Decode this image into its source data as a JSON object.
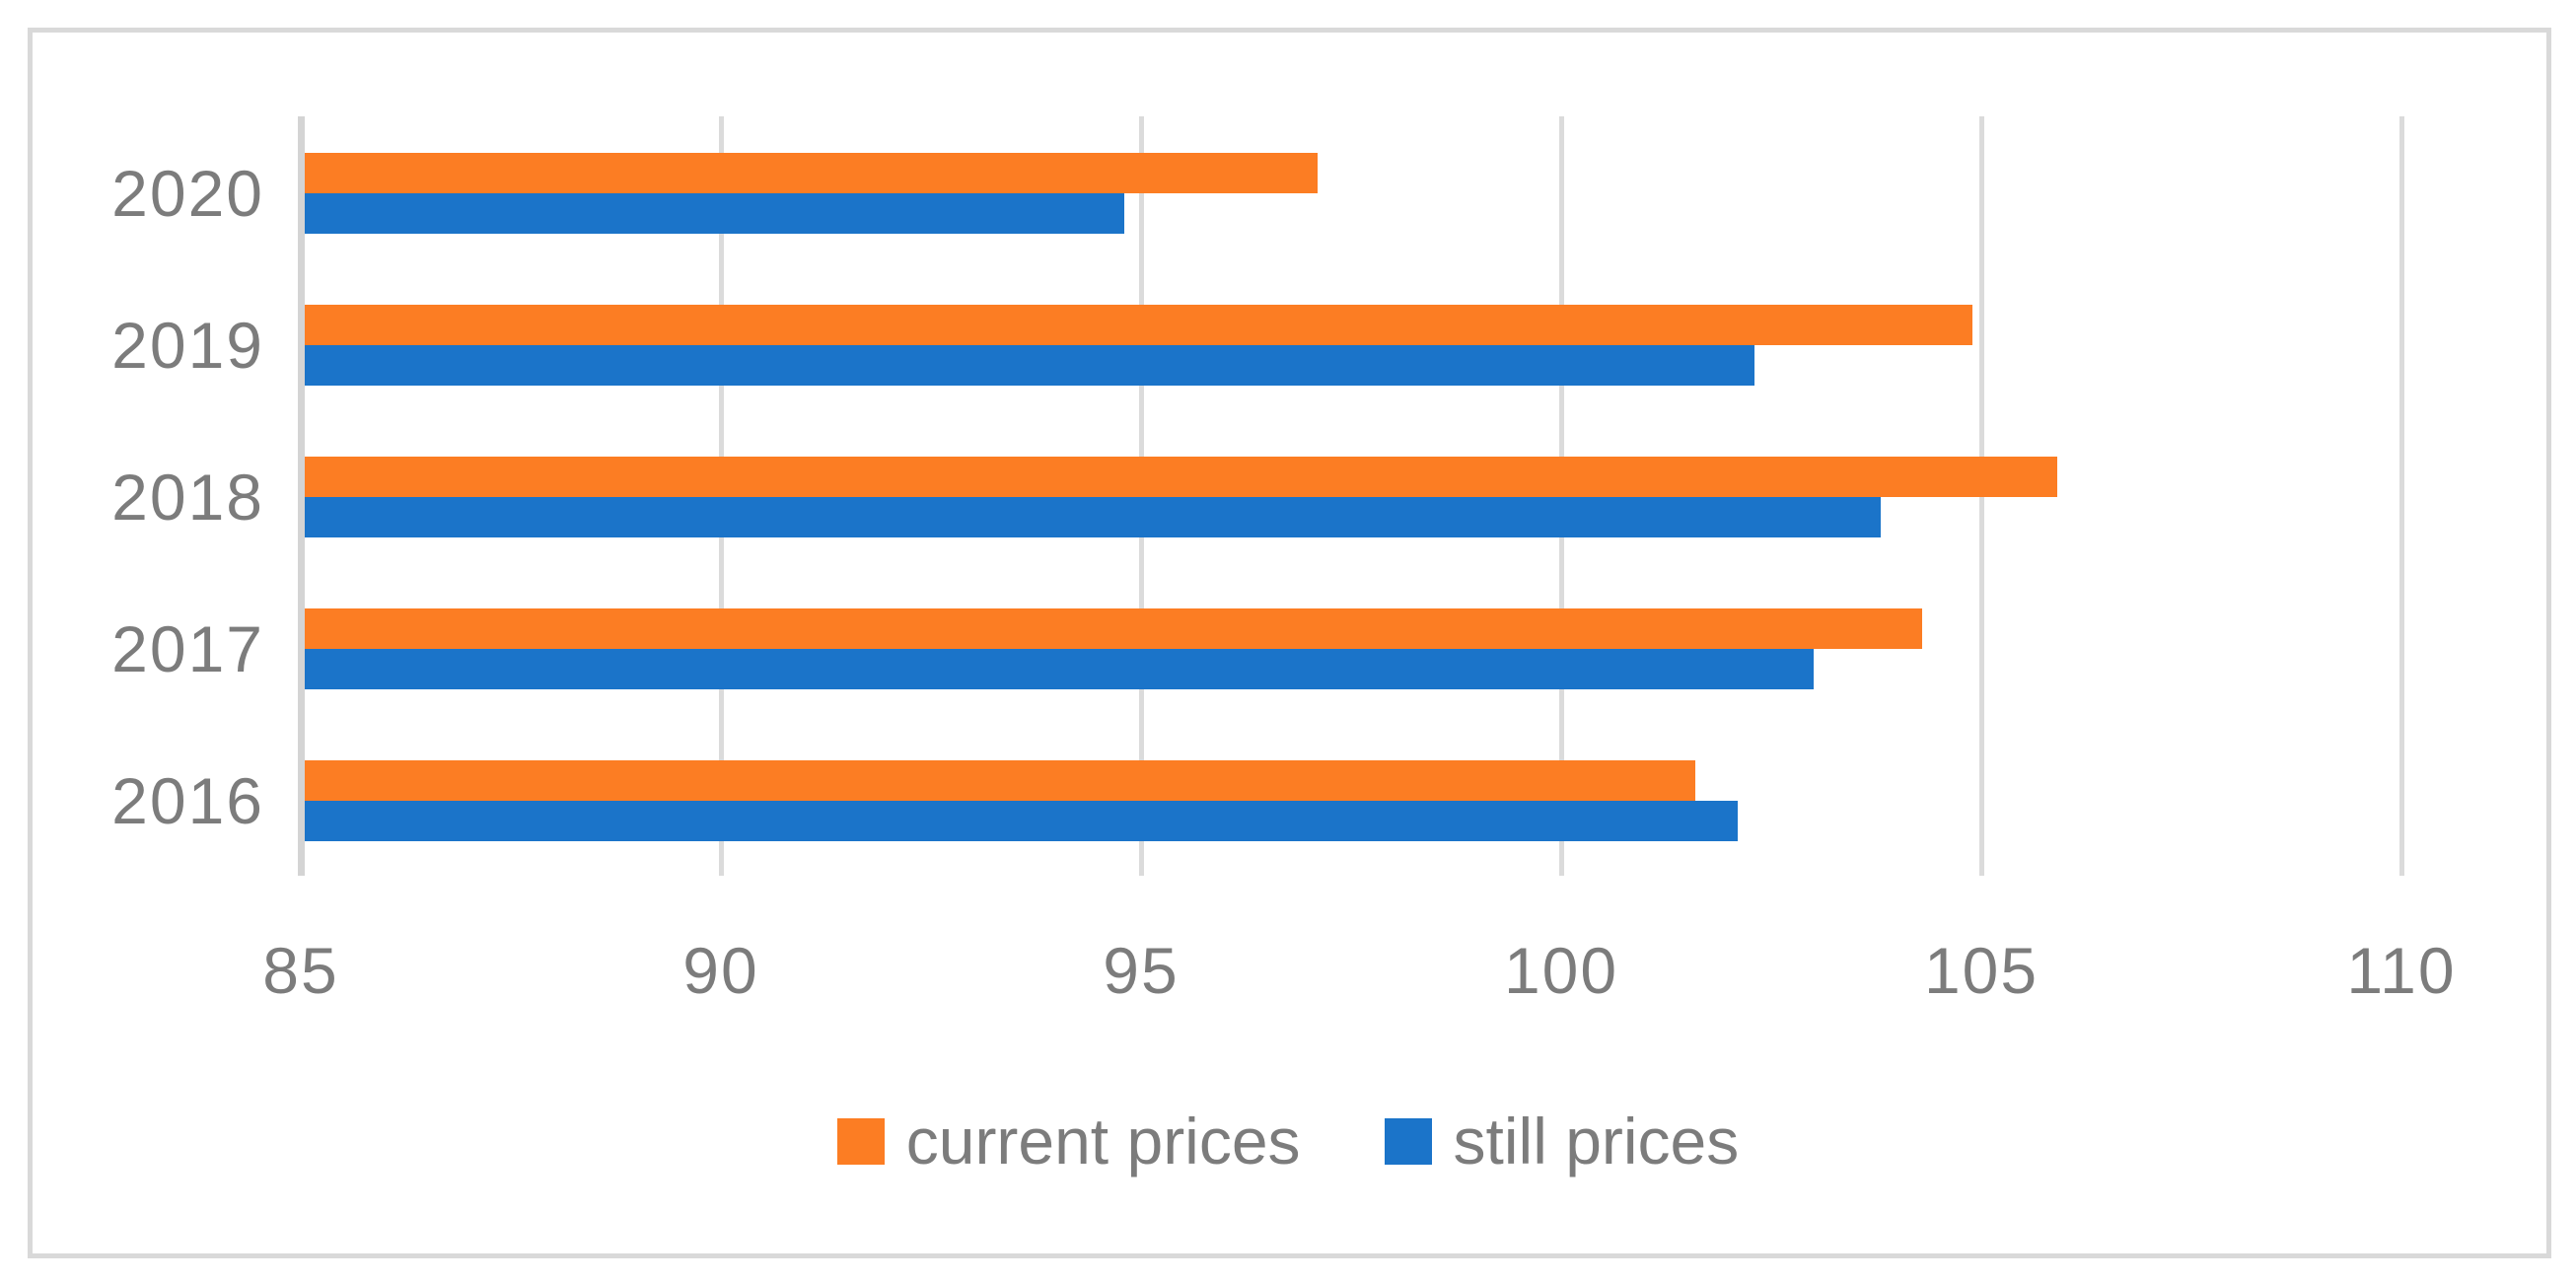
{
  "colors": {
    "current": "#FC7D23",
    "still": "#1B74C9",
    "grid": "#DBDBDB",
    "axis": "#D4D4D4",
    "border": "#D9D9D9",
    "label": "#7C7C7C"
  },
  "chart_data": {
    "type": "bar",
    "orientation": "horizontal",
    "title": "",
    "xlabel": "",
    "ylabel": "",
    "categories": [
      "2020",
      "2019",
      "2018",
      "2017",
      "2016"
    ],
    "series": [
      {
        "name": "current prices",
        "color_key": "current",
        "values": [
          97.1,
          104.9,
          105.9,
          104.3,
          101.6
        ]
      },
      {
        "name": "still prices",
        "color_key": "still",
        "values": [
          94.8,
          102.3,
          103.8,
          103.0,
          102.1
        ]
      }
    ],
    "xlim": [
      85,
      110
    ],
    "xticks": [
      85,
      90,
      95,
      100,
      105,
      110
    ],
    "grid": true,
    "legend_position": "bottom"
  }
}
